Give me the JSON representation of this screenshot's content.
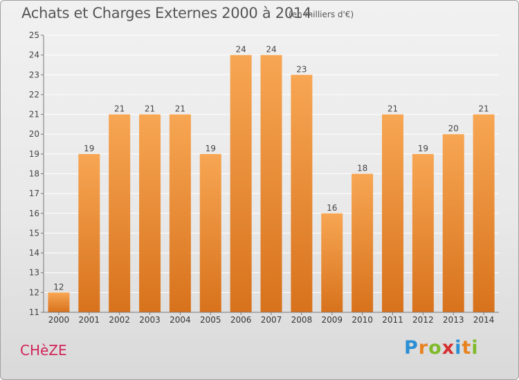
{
  "header": {
    "title": "Achats et Charges Externes 2000 à 2014",
    "subtitle": "(en milliers d'€)"
  },
  "footer": {
    "commune": "CHèZE",
    "brand_letters": [
      "P",
      "r",
      "o",
      "x",
      "i",
      "t",
      "i"
    ]
  },
  "colors": {
    "bar_top": "#f7a653",
    "bar_bottom": "#d8721c",
    "commune": "#d1255a",
    "brand": [
      "#2a8fd4",
      "#e8821f",
      "#7fba2a",
      "#d62f2f",
      "#2a8fd4",
      "#e8821f",
      "#7fba2a"
    ]
  },
  "chart_data": {
    "type": "bar",
    "title": "Achats et Charges Externes 2000 à 2014",
    "subtitle": "(en milliers d'€)",
    "categories": [
      "2000",
      "2001",
      "2002",
      "2003",
      "2004",
      "2005",
      "2006",
      "2007",
      "2008",
      "2009",
      "2010",
      "2011",
      "2012",
      "2013",
      "2014"
    ],
    "values": [
      12,
      19,
      21,
      21,
      21,
      19,
      24,
      24,
      23,
      16,
      18,
      21,
      19,
      20,
      21
    ],
    "data_labels": [
      "12",
      "19",
      "21",
      "21",
      "21",
      "19",
      "24",
      "24",
      "23",
      "16",
      "18",
      "21",
      "19",
      "20",
      "21"
    ],
    "yticks": [
      11,
      12,
      13,
      14,
      15,
      16,
      17,
      18,
      19,
      20,
      21,
      22,
      23,
      24,
      25
    ],
    "ylim": [
      11,
      25
    ],
    "xlabel": "",
    "ylabel": "",
    "grid": true,
    "legend": "none"
  }
}
